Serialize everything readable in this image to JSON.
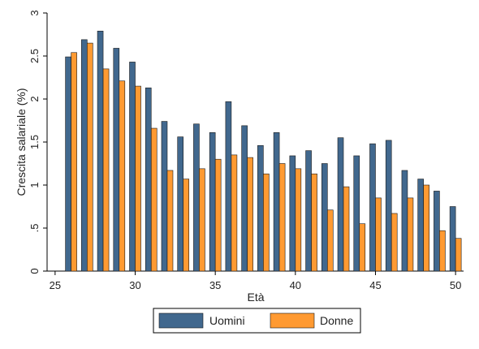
{
  "chart_data": {
    "type": "bar",
    "title": "",
    "xlabel": "Età",
    "ylabel": "Crescita salariale (%)",
    "xlim": [
      24.5,
      50.5
    ],
    "ylim": [
      0,
      3
    ],
    "x_ticks": [
      25,
      30,
      35,
      40,
      45,
      50
    ],
    "y_ticks": [
      0,
      0.5,
      1,
      1.5,
      2,
      2.5,
      3
    ],
    "y_tick_labels": [
      "0",
      ".5",
      "1",
      "1.5",
      "2",
      "2.5",
      "3"
    ],
    "grid": false,
    "legend_position": "bottom",
    "x": [
      26,
      27,
      28,
      29,
      30,
      31,
      32,
      33,
      34,
      35,
      36,
      37,
      38,
      39,
      40,
      41,
      42,
      43,
      44,
      45,
      46,
      47,
      48,
      49,
      50
    ],
    "series": [
      {
        "name": "Uomini",
        "color": "#41688e",
        "values": [
          2.49,
          2.69,
          2.79,
          2.59,
          2.43,
          2.13,
          1.74,
          1.56,
          1.71,
          1.61,
          1.97,
          1.69,
          1.46,
          1.61,
          1.34,
          1.4,
          1.25,
          1.55,
          1.34,
          1.48,
          1.52,
          1.17,
          1.07,
          0.93,
          0.75
        ]
      },
      {
        "name": "Donne",
        "color": "#ff9a32",
        "values": [
          2.54,
          2.65,
          2.35,
          2.21,
          2.15,
          1.66,
          1.17,
          1.07,
          1.19,
          1.3,
          1.35,
          1.32,
          1.13,
          1.25,
          1.19,
          1.13,
          0.71,
          0.98,
          0.55,
          0.85,
          0.67,
          0.85,
          1.0,
          0.47,
          0.38
        ]
      }
    ]
  }
}
